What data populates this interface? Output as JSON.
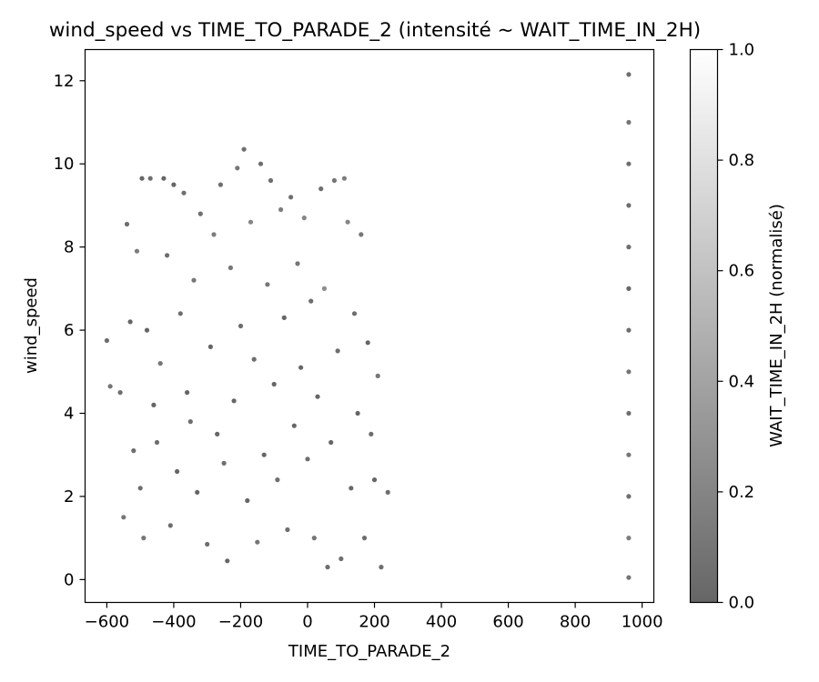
{
  "chart_data": {
    "type": "scatter",
    "title": "wind_speed vs TIME_TO_PARADE_2 (intensité ~ WAIT_TIME_IN_2H)",
    "xlabel": "TIME_TO_PARADE_2",
    "ylabel": "wind_speed",
    "xlim": [
      -665,
      1035
    ],
    "ylim": [
      -0.55,
      12.75
    ],
    "x_ticks": [
      -600,
      -400,
      -200,
      0,
      200,
      400,
      600,
      800,
      1000
    ],
    "x_tick_labels": [
      "−600",
      "−400",
      "−200",
      "0",
      "200",
      "400",
      "600",
      "800",
      "1000"
    ],
    "y_ticks": [
      0,
      2,
      4,
      6,
      8,
      10,
      12
    ],
    "y_tick_labels": [
      "0",
      "2",
      "4",
      "6",
      "8",
      "10",
      "12"
    ],
    "grid": false,
    "colorbar": {
      "label": "WAIT_TIME_IN_2H (normalisé)",
      "range": [
        0,
        1
      ],
      "ticks": [
        0,
        0.2,
        0.4,
        0.6,
        0.8,
        1
      ],
      "tick_labels": [
        "0.0",
        "0.2",
        "0.4",
        "0.6",
        "0.8",
        "1.0"
      ],
      "colormap": "gray",
      "alpha": 0.6
    },
    "points": [
      {
        "x": -600,
        "y": 5.75,
        "c": 0.05
      },
      {
        "x": -590,
        "y": 4.65,
        "c": 0.1
      },
      {
        "x": -560,
        "y": 4.5,
        "c": 0.05
      },
      {
        "x": -550,
        "y": 1.5,
        "c": 0.1
      },
      {
        "x": -540,
        "y": 8.55,
        "c": 0.05
      },
      {
        "x": -530,
        "y": 6.2,
        "c": 0.0
      },
      {
        "x": -520,
        "y": 3.1,
        "c": 0.05
      },
      {
        "x": -510,
        "y": 7.9,
        "c": 0.15
      },
      {
        "x": -500,
        "y": 2.2,
        "c": 0.05
      },
      {
        "x": -495,
        "y": 9.65,
        "c": 0.0
      },
      {
        "x": -490,
        "y": 1.0,
        "c": 0.1
      },
      {
        "x": -480,
        "y": 6.0,
        "c": 0.0
      },
      {
        "x": -470,
        "y": 9.65,
        "c": 0.05
      },
      {
        "x": -460,
        "y": 4.2,
        "c": 0.0
      },
      {
        "x": -450,
        "y": 3.3,
        "c": 0.05
      },
      {
        "x": -440,
        "y": 5.2,
        "c": 0.1
      },
      {
        "x": -430,
        "y": 9.65,
        "c": 0.0
      },
      {
        "x": -420,
        "y": 7.8,
        "c": 0.05
      },
      {
        "x": -410,
        "y": 1.3,
        "c": 0.05
      },
      {
        "x": -400,
        "y": 9.5,
        "c": 0.0
      },
      {
        "x": -390,
        "y": 2.6,
        "c": 0.0
      },
      {
        "x": -380,
        "y": 6.4,
        "c": 0.05
      },
      {
        "x": -370,
        "y": 9.3,
        "c": 0.05
      },
      {
        "x": -360,
        "y": 4.5,
        "c": 0.0
      },
      {
        "x": -350,
        "y": 3.8,
        "c": 0.05
      },
      {
        "x": -340,
        "y": 7.2,
        "c": 0.1
      },
      {
        "x": -330,
        "y": 2.1,
        "c": 0.0
      },
      {
        "x": -320,
        "y": 8.8,
        "c": 0.05
      },
      {
        "x": -300,
        "y": 0.85,
        "c": 0.05
      },
      {
        "x": -290,
        "y": 5.6,
        "c": 0.0
      },
      {
        "x": -280,
        "y": 8.3,
        "c": 0.15
      },
      {
        "x": -270,
        "y": 3.5,
        "c": 0.0
      },
      {
        "x": -260,
        "y": 9.5,
        "c": 0.05
      },
      {
        "x": -250,
        "y": 2.8,
        "c": 0.05
      },
      {
        "x": -240,
        "y": 0.45,
        "c": 0.0
      },
      {
        "x": -230,
        "y": 7.5,
        "c": 0.1
      },
      {
        "x": -220,
        "y": 4.3,
        "c": 0.0
      },
      {
        "x": -210,
        "y": 9.9,
        "c": 0.1
      },
      {
        "x": -200,
        "y": 6.1,
        "c": 0.05
      },
      {
        "x": -190,
        "y": 10.35,
        "c": 0.05
      },
      {
        "x": -180,
        "y": 1.9,
        "c": 0.0
      },
      {
        "x": -170,
        "y": 8.6,
        "c": 0.2
      },
      {
        "x": -160,
        "y": 5.3,
        "c": 0.05
      },
      {
        "x": -150,
        "y": 0.9,
        "c": 0.1
      },
      {
        "x": -140,
        "y": 10.0,
        "c": 0.05
      },
      {
        "x": -130,
        "y": 3.0,
        "c": 0.0
      },
      {
        "x": -120,
        "y": 7.1,
        "c": 0.1
      },
      {
        "x": -110,
        "y": 9.6,
        "c": 0.05
      },
      {
        "x": -100,
        "y": 4.7,
        "c": 0.0
      },
      {
        "x": -90,
        "y": 2.4,
        "c": 0.05
      },
      {
        "x": -80,
        "y": 8.9,
        "c": 0.15
      },
      {
        "x": -70,
        "y": 6.3,
        "c": 0.0
      },
      {
        "x": -60,
        "y": 1.2,
        "c": 0.05
      },
      {
        "x": -50,
        "y": 9.2,
        "c": 0.05
      },
      {
        "x": -40,
        "y": 3.7,
        "c": 0.0
      },
      {
        "x": -30,
        "y": 7.6,
        "c": 0.1
      },
      {
        "x": -20,
        "y": 5.1,
        "c": 0.0
      },
      {
        "x": -10,
        "y": 8.7,
        "c": 0.2
      },
      {
        "x": 0,
        "y": 2.9,
        "c": 0.05
      },
      {
        "x": 10,
        "y": 6.7,
        "c": 0.05
      },
      {
        "x": 20,
        "y": 1.0,
        "c": 0.1
      },
      {
        "x": 30,
        "y": 4.4,
        "c": 0.0
      },
      {
        "x": 40,
        "y": 9.4,
        "c": 0.05
      },
      {
        "x": 50,
        "y": 7.0,
        "c": 0.25
      },
      {
        "x": 60,
        "y": 0.3,
        "c": 0.05
      },
      {
        "x": 70,
        "y": 3.3,
        "c": 0.0
      },
      {
        "x": 80,
        "y": 9.6,
        "c": 0.1
      },
      {
        "x": 90,
        "y": 5.5,
        "c": 0.05
      },
      {
        "x": 100,
        "y": 0.5,
        "c": 0.05
      },
      {
        "x": 110,
        "y": 9.65,
        "c": 0.15
      },
      {
        "x": 120,
        "y": 8.6,
        "c": 0.2
      },
      {
        "x": 130,
        "y": 2.2,
        "c": 0.0
      },
      {
        "x": 140,
        "y": 6.4,
        "c": 0.05
      },
      {
        "x": 150,
        "y": 4.0,
        "c": 0.0
      },
      {
        "x": 160,
        "y": 8.3,
        "c": 0.1
      },
      {
        "x": 170,
        "y": 1.0,
        "c": 0.05
      },
      {
        "x": 180,
        "y": 5.7,
        "c": 0.0
      },
      {
        "x": 190,
        "y": 3.5,
        "c": 0.05
      },
      {
        "x": 200,
        "y": 2.4,
        "c": 0.0
      },
      {
        "x": 210,
        "y": 4.9,
        "c": 0.1
      },
      {
        "x": 220,
        "y": 0.3,
        "c": 0.05
      },
      {
        "x": 240,
        "y": 2.1,
        "c": 0.05
      },
      {
        "x": 960,
        "y": 0.05,
        "c": 0.1
      },
      {
        "x": 960,
        "y": 1.0,
        "c": 0.15
      },
      {
        "x": 960,
        "y": 2.0,
        "c": 0.05
      },
      {
        "x": 960,
        "y": 3.0,
        "c": 0.1
      },
      {
        "x": 960,
        "y": 4.0,
        "c": 0.05
      },
      {
        "x": 960,
        "y": 5.0,
        "c": 0.1
      },
      {
        "x": 960,
        "y": 6.0,
        "c": 0.05
      },
      {
        "x": 960,
        "y": 7.0,
        "c": 0.0
      },
      {
        "x": 960,
        "y": 8.0,
        "c": 0.05
      },
      {
        "x": 960,
        "y": 9.0,
        "c": 0.05
      },
      {
        "x": 960,
        "y": 10.0,
        "c": 0.05
      },
      {
        "x": 960,
        "y": 11.0,
        "c": 0.1
      },
      {
        "x": 960,
        "y": 12.15,
        "c": 0.05
      }
    ]
  }
}
